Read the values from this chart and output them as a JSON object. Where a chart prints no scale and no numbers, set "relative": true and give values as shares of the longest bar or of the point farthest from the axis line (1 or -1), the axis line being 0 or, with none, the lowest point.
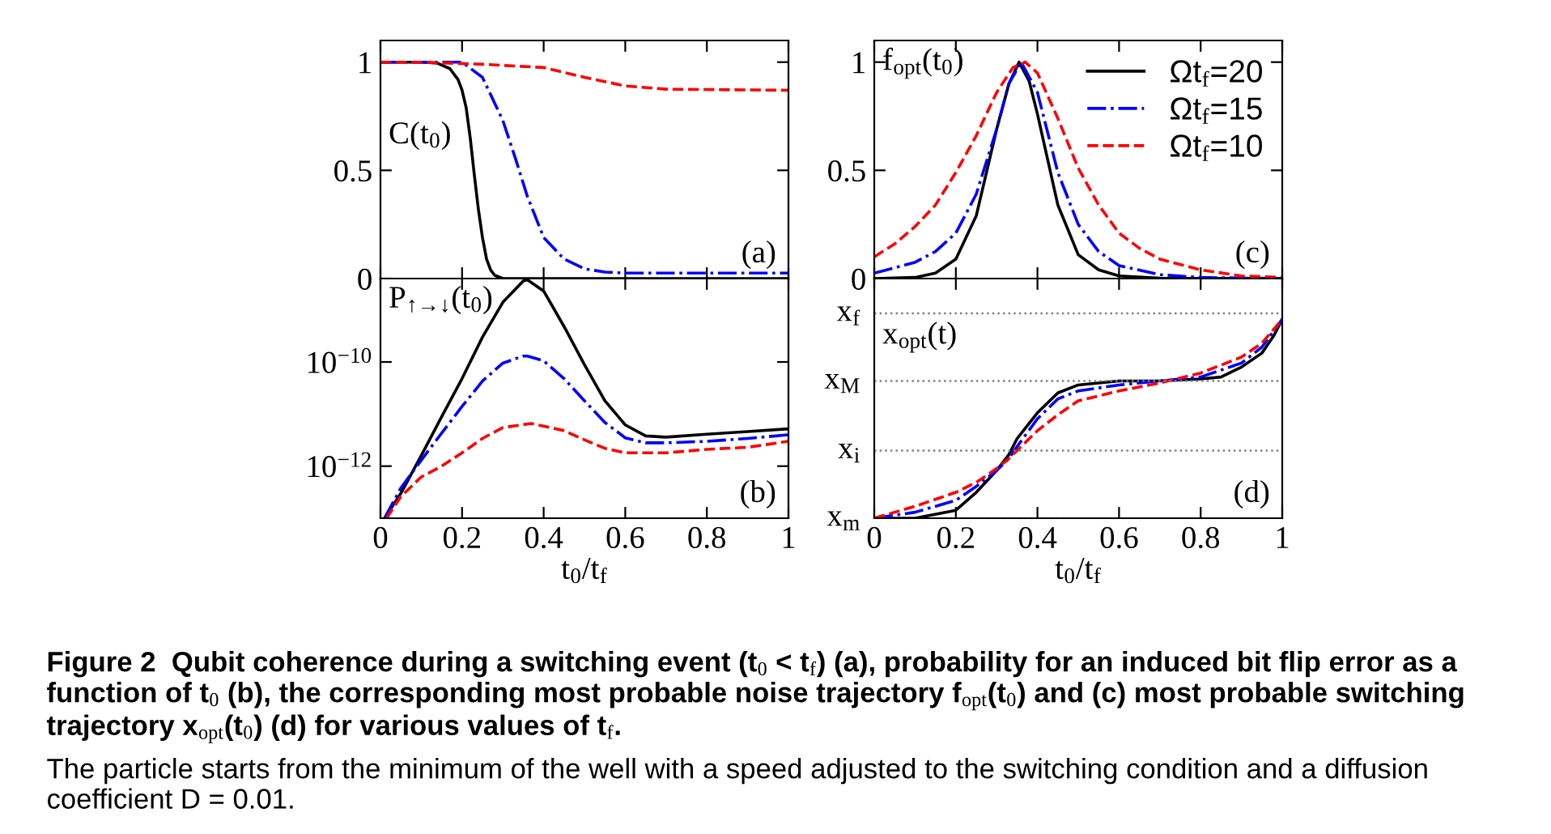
{
  "chart_data": [
    {
      "type": "line",
      "x": [
        0,
        0.1,
        0.14,
        0.17,
        0.19,
        0.2,
        0.21,
        0.22,
        0.23,
        0.24,
        0.25,
        0.26,
        0.27,
        0.28,
        0.3,
        0.5,
        1
      ],
      "xlim": [
        0,
        1
      ],
      "xticks": [
        0,
        0.2,
        0.4,
        0.6,
        0.8,
        1
      ],
      "ylim": [
        0,
        1.1
      ],
      "yticks": [
        0,
        0.5,
        1
      ],
      "tick_labels": "y",
      "grid": false,
      "legend": false,
      "annotations": [
        "C(t$_{0}$)",
        "(a)",
        "Figure 2  Qubit coherence during a switching event (t$_{0}$ < t$_{f}$) (a), probability for an induced bit flip error as a function of t$_{0}$ (b), the corresponding most probable noise trajectory f$_{opt}$(t$_{0}$) and (c) most probable switching trajectory x$_{opt}$(t$_{0}$) (d) for various values of t$_{f}$.",
        "The particle starts from the minimum of the well with a speed adjusted to the switching condition and a diffusion coefficient D = 0.01."
      ],
      "series": [
        {
          "color": "#000000",
          "line_style": "solid",
          "values": [
            1,
            1,
            0.995,
            0.97,
            0.92,
            0.87,
            0.79,
            0.65,
            0.48,
            0.32,
            0.19,
            0.09,
            0.04,
            0.015,
            0,
            0,
            0
          ]
        },
        {
          "color": "#0000ff",
          "line_style": "dashdot",
          "x": [
            0,
            0.2,
            0.25,
            0.3,
            0.33,
            0.36,
            0.4,
            0.45,
            0.5,
            0.55,
            0.6,
            1
          ],
          "values": [
            1,
            1,
            0.93,
            0.73,
            0.56,
            0.38,
            0.19,
            0.09,
            0.045,
            0.03,
            0.025,
            0.025
          ]
        },
        {
          "color": "#ff0000",
          "line_style": "dashed",
          "x": [
            0,
            0.1,
            0.25,
            0.4,
            0.5,
            0.6,
            0.7,
            1
          ],
          "values": [
            1,
            1,
            0.99,
            0.975,
            0.93,
            0.89,
            0.875,
            0.87
          ]
        }
      ]
    },
    {
      "type": "line",
      "log": "y",
      "xlabel": "t$_{0}$/t$_{f}$",
      "xlim": [
        0,
        1
      ],
      "xticks": [
        0,
        0.2,
        0.4,
        0.6,
        0.8,
        1
      ],
      "ylim": [
        1e-13,
        4e-09
      ],
      "yticks": [
        {
          "value": 1e-12,
          "label": "10$^{−12}$"
        },
        {
          "value": 1e-10,
          "label": "10$^{−10}$"
        }
      ],
      "grid": false,
      "legend": false,
      "annotations": [
        "P$_{↑→↓}$(t$_{0}$)",
        "(b)"
      ],
      "x": [
        0.01,
        0.05,
        0.1,
        0.15,
        0.2,
        0.25,
        0.3,
        0.35,
        0.36,
        0.4,
        0.45,
        0.5,
        0.55,
        0.6,
        0.65,
        0.7,
        0.8,
        0.9,
        1
      ],
      "series": [
        {
          "color": "#000000",
          "line_style": "solid",
          "values": [
            1e-13,
            3e-13,
            1.6e-12,
            8.9e-12,
            4.8e-11,
            3e-10,
            1.4e-09,
            3.6e-09,
            3.8e-09,
            2.3e-09,
            4.8e-10,
            8.9e-11,
            1.8e-11,
            6.2e-12,
            3.8e-12,
            3.6e-12,
            4.1e-12,
            4.6e-12,
            5.2e-12
          ]
        },
        {
          "color": "#0000ff",
          "line_style": "dashdot",
          "values": [
            1e-13,
            3.8e-13,
            1.3e-12,
            4.3e-12,
            1.4e-11,
            4.3e-11,
            9.5e-11,
            1.3e-10,
            1.3e-10,
            1.05e-10,
            4.8e-11,
            1.8e-11,
            6.9e-12,
            3.5e-12,
            2.8e-12,
            2.8e-12,
            3e-12,
            3.4e-12,
            4e-12
          ]
        },
        {
          "color": "#ff0000",
          "line_style": "dashed",
          "x": [
            0.015,
            0.05,
            0.1,
            0.15,
            0.2,
            0.25,
            0.3,
            0.37,
            0.45,
            0.5,
            0.55,
            0.6,
            0.65,
            0.7,
            0.8,
            0.9,
            1
          ],
          "values": [
            1e-13,
            2.6e-13,
            6.2e-13,
            1e-12,
            1.8e-12,
            3.4e-12,
            5.5e-12,
            6.6e-12,
            4.8e-12,
            3.2e-12,
            2.2e-12,
            1.8e-12,
            1.8e-12,
            1.8e-12,
            2.1e-12,
            2.3e-12,
            3e-12
          ]
        }
      ]
    },
    {
      "type": "line",
      "xlim": [
        0,
        1
      ],
      "xticks": [
        0,
        0.2,
        0.4,
        0.6,
        0.8,
        1
      ],
      "ylim": [
        0,
        1.1
      ],
      "yticks": [
        0,
        0.5,
        1
      ],
      "tick_labels": "y",
      "grid": false,
      "legend": "top right",
      "annotations": [
        "f$_{opt}$(t$_{0}$)",
        "(c)"
      ],
      "series": [
        {
          "name": "Ωt$_{f}$=20",
          "color": "#000000",
          "line_style": "solid",
          "x": [
            0,
            0.1,
            0.15,
            0.2,
            0.25,
            0.3,
            0.33,
            0.355,
            0.38,
            0.4,
            0.45,
            0.5,
            0.55,
            0.6,
            0.7,
            1
          ],
          "values": [
            0,
            0.005,
            0.025,
            0.09,
            0.29,
            0.69,
            0.9,
            1,
            0.91,
            0.76,
            0.34,
            0.11,
            0.04,
            0.012,
            0.002,
            0
          ]
        },
        {
          "name": "Ωt$_{f}$=15",
          "color": "#0000ff",
          "line_style": "dashdot",
          "x": [
            0,
            0.1,
            0.15,
            0.2,
            0.25,
            0.3,
            0.33,
            0.36,
            0.4,
            0.45,
            0.5,
            0.55,
            0.6,
            0.7,
            0.8,
            1
          ],
          "values": [
            0.025,
            0.075,
            0.125,
            0.21,
            0.39,
            0.69,
            0.9,
            1,
            0.86,
            0.49,
            0.25,
            0.125,
            0.06,
            0.018,
            0.005,
            0
          ]
        },
        {
          "name": "Ωt$_{f}$=10",
          "color": "#ff0000",
          "line_style": "dashed",
          "x": [
            0,
            0.05,
            0.1,
            0.15,
            0.2,
            0.25,
            0.3,
            0.34,
            0.37,
            0.4,
            0.45,
            0.5,
            0.55,
            0.6,
            0.65,
            0.7,
            0.8,
            0.9,
            1
          ],
          "values": [
            0.1,
            0.16,
            0.24,
            0.34,
            0.49,
            0.66,
            0.86,
            0.975,
            1,
            0.95,
            0.74,
            0.51,
            0.34,
            0.21,
            0.14,
            0.09,
            0.04,
            0.012,
            0.005
          ]
        }
      ]
    },
    {
      "type": "line",
      "relative": true,
      "xlabel": "t$_{0}$/t$_{f}$",
      "xlim": [
        0,
        1
      ],
      "xticks": [
        0,
        0.2,
        0.4,
        0.6,
        0.8,
        1
      ],
      "grid": false,
      "legend": false,
      "annotations": [
        "x$_{opt}$(t)",
        "(d)"
      ],
      "ref_lines": [
        {
          "axis": "y",
          "value": 0,
          "label": "x$_{m}$",
          "color": "#808080",
          "line_style": "dotted"
        },
        {
          "axis": "y",
          "value": 0.34,
          "label": "x$_{i}$",
          "color": "#808080",
          "line_style": "dotted"
        },
        {
          "axis": "y",
          "value": 0.69,
          "label": "x$_{M}$",
          "color": "#808080",
          "line_style": "dotted"
        },
        {
          "axis": "y",
          "value": 1.03,
          "label": "x$_{f}$",
          "color": "#808080",
          "line_style": "dotted"
        }
      ],
      "series": [
        {
          "color": "#000000",
          "line_style": "solid",
          "x": [
            0,
            0.1,
            0.2,
            0.25,
            0.3,
            0.33,
            0.35,
            0.4,
            0.45,
            0.5,
            0.6,
            0.7,
            0.8,
            0.85,
            0.9,
            0.95,
            0.98,
            1
          ],
          "values": [
            0,
            0,
            0.04,
            0.13,
            0.24,
            0.32,
            0.4,
            0.53,
            0.63,
            0.67,
            0.69,
            0.69,
            0.7,
            0.71,
            0.76,
            0.83,
            0.92,
            1
          ]
        },
        {
          "color": "#0000ff",
          "line_style": "dashdot",
          "x": [
            0,
            0.1,
            0.2,
            0.25,
            0.3,
            0.33,
            0.35,
            0.4,
            0.45,
            0.5,
            0.6,
            0.7,
            0.8,
            0.9,
            0.95,
            1
          ],
          "values": [
            0,
            0.03,
            0.09,
            0.16,
            0.24,
            0.3,
            0.36,
            0.5,
            0.6,
            0.64,
            0.67,
            0.69,
            0.71,
            0.78,
            0.86,
            1
          ]
        },
        {
          "color": "#ff0000",
          "line_style": "dashed",
          "x": [
            0,
            0.1,
            0.2,
            0.25,
            0.3,
            0.33,
            0.35,
            0.4,
            0.45,
            0.5,
            0.6,
            0.7,
            0.8,
            0.9,
            0.95,
            1
          ],
          "values": [
            0,
            0.06,
            0.13,
            0.18,
            0.25,
            0.3,
            0.34,
            0.44,
            0.52,
            0.59,
            0.64,
            0.68,
            0.73,
            0.81,
            0.88,
            1
          ]
        }
      ]
    }
  ]
}
